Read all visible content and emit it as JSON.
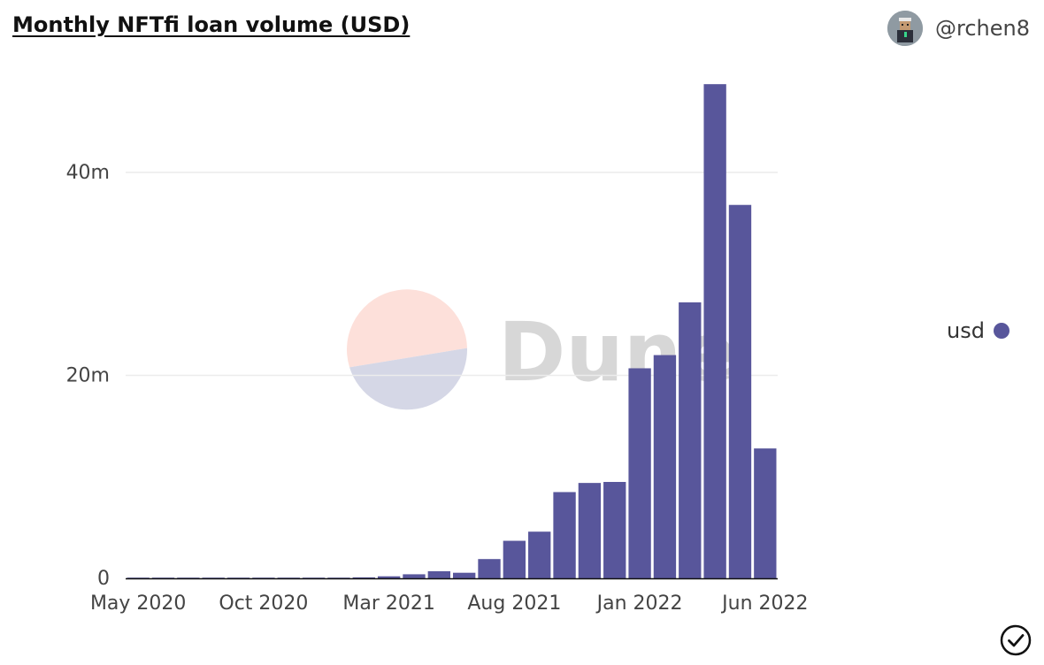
{
  "header": {
    "title": "Monthly NFTfi loan volume (USD)",
    "author": "@rchen8"
  },
  "watermark": {
    "text": "Dune"
  },
  "legend": {
    "label": "usd"
  },
  "colors": {
    "bar": "#58569b",
    "grid": "#ececec",
    "axis": "#111111",
    "watermark_top": "#fde0da",
    "watermark_bottom": "#d5d7e6"
  },
  "icons": {
    "status": "check-circle-icon",
    "avatar": "avatar-icon"
  },
  "chart_data": {
    "type": "bar",
    "categories": [
      "2020-05",
      "2020-06",
      "2020-07",
      "2020-08",
      "2020-09",
      "2020-10",
      "2020-11",
      "2020-12",
      "2021-01",
      "2021-02",
      "2021-03",
      "2021-04",
      "2021-05",
      "2021-06",
      "2021-07",
      "2021-08",
      "2021-09",
      "2021-10",
      "2021-11",
      "2021-12",
      "2022-01",
      "2022-02",
      "2022-03",
      "2022-04",
      "2022-05",
      "2022-06"
    ],
    "series": [
      {
        "name": "usd",
        "values": [
          0.02,
          0.03,
          0.03,
          0.02,
          0.04,
          0.03,
          0.04,
          0.05,
          0.04,
          0.1,
          0.2,
          0.4,
          0.7,
          0.55,
          1.9,
          3.7,
          4.6,
          8.5,
          9.4,
          9.5,
          20.7,
          22.0,
          27.2,
          48.7,
          36.8,
          12.8
        ]
      }
    ],
    "value_unit": "millions USD",
    "y_ticks": [
      0,
      20,
      40
    ],
    "y_tick_labels": [
      "0",
      "20m",
      "40m"
    ],
    "x_tick_labels": [
      {
        "category": "2020-05",
        "label": "May 2020"
      },
      {
        "category": "2020-10",
        "label": "Oct 2020"
      },
      {
        "category": "2021-03",
        "label": "Mar 2021"
      },
      {
        "category": "2021-08",
        "label": "Aug 2021"
      },
      {
        "category": "2022-01",
        "label": "Jan 2022"
      },
      {
        "category": "2022-06",
        "label": "Jun 2022"
      }
    ],
    "ylim": [
      0,
      50
    ],
    "grid": true,
    "legend_position": "right"
  }
}
